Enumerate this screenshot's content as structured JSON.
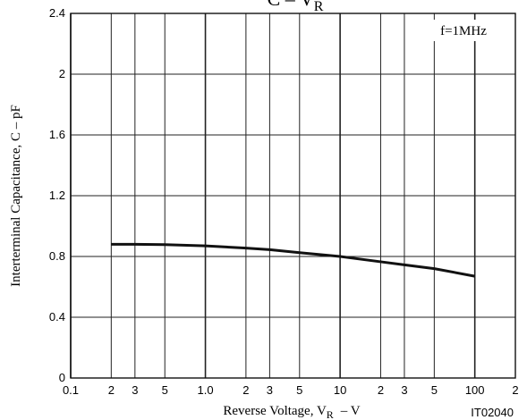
{
  "chart_data": {
    "type": "line",
    "title": {
      "main": "C  –  V",
      "sub": "R"
    },
    "x_label": {
      "main": "Reverse Voltage, V",
      "sub": "R",
      "unit": "–  V"
    },
    "y_label": "Interterminal Capacitance, C  –  pF",
    "annotations": [
      "f=1MHz",
      "IT02040"
    ],
    "x": [
      0.2,
      0.3,
      0.5,
      1,
      2,
      3,
      5,
      10,
      20,
      30,
      50,
      100
    ],
    "series": [
      {
        "name": "C",
        "color": "#111111",
        "values": [
          0.88,
          0.88,
          0.878,
          0.87,
          0.855,
          0.845,
          0.825,
          0.8,
          0.765,
          0.745,
          0.72,
          0.67
        ]
      }
    ],
    "xscale": "log",
    "xlim": [
      0.1,
      200
    ],
    "xticks": [
      0.1,
      {
        "value": 0.2,
        "label": "2"
      },
      {
        "value": 0.3,
        "label": "3"
      },
      {
        "value": 0.5,
        "label": "5"
      },
      {
        "value": 1,
        "label": "1.0"
      },
      2,
      3,
      5,
      10,
      {
        "value": 20,
        "label": "2"
      },
      {
        "value": 30,
        "label": "3"
      },
      {
        "value": 50,
        "label": "5"
      },
      100,
      {
        "value": 200,
        "label": "2"
      }
    ],
    "ylim": [
      0,
      2.4
    ],
    "yticks": [
      0,
      0.4,
      0.8,
      1.2,
      1.6,
      2.0,
      2.4
    ],
    "grid": true
  }
}
